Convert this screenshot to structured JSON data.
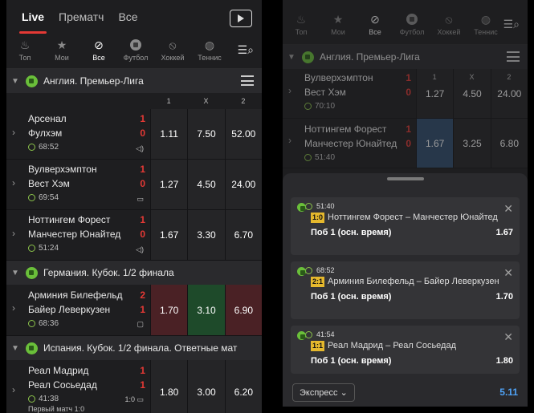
{
  "tabs": {
    "live": "Live",
    "prematch": "Прематч",
    "all": "Все"
  },
  "sports": [
    "Топ",
    "Мои",
    "Все",
    "Футбол",
    "Хоккей",
    "Теннис"
  ],
  "headers": {
    "c1": "1",
    "cx": "X",
    "c2": "2"
  },
  "leagues": [
    {
      "name": "Англия. Премьер-Лига",
      "matches": [
        {
          "t1": "Арсенал",
          "s1": "1",
          "t2": "Фулхэм",
          "s2": "0",
          "time": "68:52",
          "o1": "1.11",
          "ox": "7.50",
          "o2": "52.00"
        },
        {
          "t1": "Вулверхэмптон",
          "s1": "1",
          "t2": "Вест Хэм",
          "s2": "0",
          "time": "69:54",
          "o1": "1.27",
          "ox": "4.50",
          "o2": "24.00"
        },
        {
          "t1": "Ноттингем Форест",
          "s1": "1",
          "t2": "Манчестер Юнайтед",
          "s2": "0",
          "time": "51:24",
          "o1": "1.67",
          "ox": "3.30",
          "o2": "6.70"
        }
      ]
    },
    {
      "name": "Германия. Кубок. 1/2 финала",
      "matches": [
        {
          "t1": "Арминия Билефельд",
          "s1": "2",
          "t2": "Байер Леверкузен",
          "s2": "1",
          "time": "68:36",
          "o1": "1.70",
          "ox": "3.10",
          "o2": "6.90"
        }
      ]
    },
    {
      "name": "Испания. Кубок. 1/2 финала. Ответные мат",
      "matches": [
        {
          "t1": "Реал Мадрид",
          "s1": "1",
          "t2": "Реал Сосьедад",
          "s2": "1",
          "time": "41:38",
          "agg": "1:0",
          "first": "Первый матч 1:0",
          "o1": "1.80",
          "ox": "3.00",
          "o2": "6.20"
        }
      ]
    }
  ],
  "right": {
    "league": "Англия. Премьер-Лига",
    "m1": {
      "t1": "Вулверхэмптон",
      "s1": "1",
      "t2": "Вест Хэм",
      "s2": "0",
      "time": "70:10",
      "o1": "1.27",
      "ox": "4.50",
      "o2": "24.00"
    },
    "m2": {
      "t1": "Ноттингем Форест",
      "s1": "1",
      "t2": "Манчестер Юнайтед",
      "s2": "0",
      "time": "51:40",
      "o1": "1.67",
      "ox": "3.25",
      "o2": "6.80"
    },
    "cards": [
      {
        "time": "51:40",
        "score": "1:0",
        "match": "Ноттингем Форест – Манчестер Юнайтед",
        "market": "Поб 1 (осн. время)",
        "odd": "1.67"
      },
      {
        "time": "68:52",
        "score": "2:1",
        "match": "Арминия Билефельд – Байер Леверкузен",
        "market": "Поб 1 (осн. время)",
        "odd": "1.70"
      },
      {
        "time": "41:54",
        "score": "1:1",
        "match": "Реал Мадрид – Реал Сосьедад",
        "market": "Поб 1 (осн. время)",
        "odd": "1.80"
      }
    ],
    "express": "Экспресс",
    "total": "5.11"
  }
}
